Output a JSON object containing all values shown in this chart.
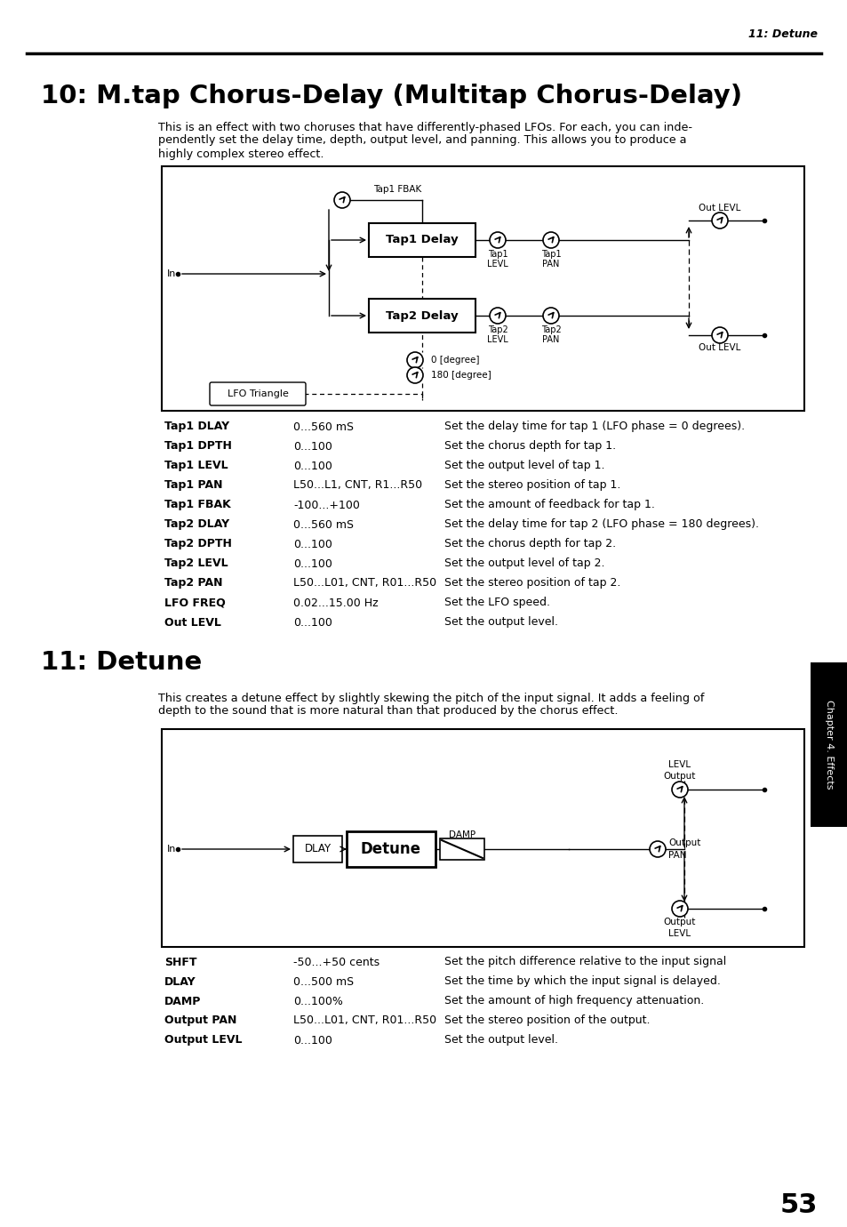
{
  "page_header": "11: Detune",
  "section1_title": "10: M.tap Chorus-Delay (Multitap Chorus-Delay)",
  "section1_body_line1": "This is an effect with two choruses that have differently-phased LFOs. For each, you can inde-",
  "section1_body_line2": "pendently set the delay time, depth, output level, and panning. This allows you to produce a",
  "section1_body_line3": "highly complex stereo effect.",
  "section2_title": "11: Detune",
  "section2_body_line1": "This creates a detune effect by slightly skewing the pitch of the input signal. It adds a feeling of",
  "section2_body_line2": "depth to the sound that is more natural than that produced by the chorus effect.",
  "tab1_params": [
    [
      "Tap1 DLAY",
      "0...560 mS",
      "Set the delay time for tap 1 (LFO phase = 0 degrees)."
    ],
    [
      "Tap1 DPTH",
      "0...100",
      "Set the chorus depth for tap 1."
    ],
    [
      "Tap1 LEVL",
      "0...100",
      "Set the output level of tap 1."
    ],
    [
      "Tap1 PAN",
      "L50...L1, CNT, R1...R50",
      "Set the stereo position of tap 1."
    ],
    [
      "Tap1 FBAK",
      "-100...+100",
      "Set the amount of feedback for tap 1."
    ],
    [
      "Tap2 DLAY",
      "0...560 mS",
      "Set the delay time for tap 2 (LFO phase = 180 degrees)."
    ],
    [
      "Tap2 DPTH",
      "0...100",
      "Set the chorus depth for tap 2."
    ],
    [
      "Tap2 LEVL",
      "0...100",
      "Set the output level of tap 2."
    ],
    [
      "Tap2 PAN",
      "L50...L01, CNT, R01...R50",
      "Set the stereo position of tap 2."
    ],
    [
      "LFO FREQ",
      "0.02...15.00 Hz",
      "Set the LFO speed."
    ],
    [
      "Out LEVL",
      "0...100",
      "Set the output level."
    ]
  ],
  "tab2_params": [
    [
      "SHFT",
      "-50...+50 cents",
      "Set the pitch difference relative to the input signal"
    ],
    [
      "DLAY",
      "0...500 mS",
      "Set the time by which the input signal is delayed."
    ],
    [
      "DAMP",
      "0...100%",
      "Set the amount of high frequency attenuation."
    ],
    [
      "Output PAN",
      "L50...L01, CNT, R01...R50",
      "Set the stereo position of the output."
    ],
    [
      "Output LEVL",
      "0...100",
      "Set the output level."
    ]
  ],
  "page_number": "53",
  "chapter_tab": "Chapter 4. Effects",
  "bg_color": "#ffffff"
}
